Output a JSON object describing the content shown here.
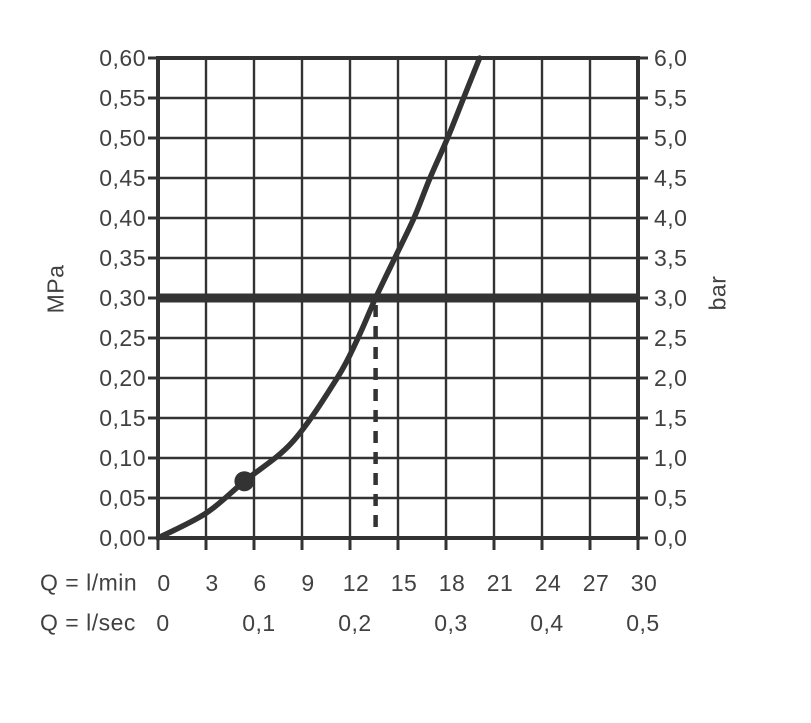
{
  "chart_data": {
    "type": "line",
    "title": "",
    "grid": true,
    "legend": null,
    "x_axis": {
      "primary_label": "Q = l/min",
      "range_lmin": [
        0,
        30
      ],
      "grid_step_lmin": 3,
      "primary_ticks": [
        {
          "q_lmin": 0,
          "label": "0"
        },
        {
          "q_lmin": 3,
          "label": "3"
        },
        {
          "q_lmin": 6,
          "label": "6"
        },
        {
          "q_lmin": 9,
          "label": "9"
        },
        {
          "q_lmin": 12,
          "label": "12"
        },
        {
          "q_lmin": 15,
          "label": "15"
        },
        {
          "q_lmin": 18,
          "label": "18"
        },
        {
          "q_lmin": 21,
          "label": "21"
        },
        {
          "q_lmin": 24,
          "label": "24"
        },
        {
          "q_lmin": 27,
          "label": "27"
        },
        {
          "q_lmin": 30,
          "label": "30"
        }
      ],
      "secondary_label": "Q = l/sec",
      "secondary_ticks": [
        {
          "q_lmin": 0,
          "label": "0"
        },
        {
          "q_lmin": 6,
          "label": "0,1"
        },
        {
          "q_lmin": 12,
          "label": "0,2"
        },
        {
          "q_lmin": 18,
          "label": "0,3"
        },
        {
          "q_lmin": 24,
          "label": "0,4"
        },
        {
          "q_lmin": 30,
          "label": "0,5"
        }
      ]
    },
    "y_axis_left": {
      "unit": "MPa",
      "range_mpa": [
        0,
        0.6
      ],
      "step_mpa": 0.05,
      "ticks": [
        {
          "p_mpa": 0.6,
          "label": "0,60"
        },
        {
          "p_mpa": 0.55,
          "label": "0,55"
        },
        {
          "p_mpa": 0.5,
          "label": "0,50"
        },
        {
          "p_mpa": 0.45,
          "label": "0,45"
        },
        {
          "p_mpa": 0.4,
          "label": "0,40"
        },
        {
          "p_mpa": 0.35,
          "label": "0,35"
        },
        {
          "p_mpa": 0.3,
          "label": "0,30"
        },
        {
          "p_mpa": 0.25,
          "label": "0,25"
        },
        {
          "p_mpa": 0.2,
          "label": "0,20"
        },
        {
          "p_mpa": 0.15,
          "label": "0,15"
        },
        {
          "p_mpa": 0.1,
          "label": "0,10"
        },
        {
          "p_mpa": 0.05,
          "label": "0,05"
        },
        {
          "p_mpa": 0.0,
          "label": "0,00"
        }
      ]
    },
    "y_axis_right": {
      "unit": "bar",
      "range_bar": [
        0,
        6
      ],
      "step_bar": 0.5,
      "ticks": [
        {
          "p_bar": 6.0,
          "label": "6,0"
        },
        {
          "p_bar": 5.5,
          "label": "5,5"
        },
        {
          "p_bar": 5.0,
          "label": "5,0"
        },
        {
          "p_bar": 4.5,
          "label": "4,5"
        },
        {
          "p_bar": 4.0,
          "label": "4,0"
        },
        {
          "p_bar": 3.5,
          "label": "3,5"
        },
        {
          "p_bar": 3.0,
          "label": "3,0"
        },
        {
          "p_bar": 2.5,
          "label": "2,5"
        },
        {
          "p_bar": 2.0,
          "label": "2,0"
        },
        {
          "p_bar": 1.5,
          "label": "1,5"
        },
        {
          "p_bar": 1.0,
          "label": "1,0"
        },
        {
          "p_bar": 0.5,
          "label": "0,5"
        },
        {
          "p_bar": 0.0,
          "label": "0,0"
        }
      ]
    },
    "series": [
      {
        "name": "flow-rate-vs-pressure-curve",
        "points_q_lmin_p_mpa": [
          [
            0,
            0
          ],
          [
            3,
            0.031
          ],
          [
            5.4,
            0.071
          ],
          [
            8.4,
            0.12
          ],
          [
            11.2,
            0.2
          ],
          [
            12.5,
            0.25
          ],
          [
            13.6,
            0.3
          ],
          [
            14.8,
            0.35
          ],
          [
            16.0,
            0.4
          ],
          [
            17.0,
            0.45
          ],
          [
            18.1,
            0.5
          ],
          [
            19.1,
            0.55
          ],
          [
            20.1,
            0.6
          ]
        ]
      }
    ],
    "annotations": {
      "reference_pressure_line": {
        "p_mpa": 0.3,
        "p_bar": 3.0,
        "style": "thick-horizontal"
      },
      "dashed_drop_line": {
        "q_lmin": 13.6,
        "from_p_mpa": 0.3,
        "to_p_mpa": 0
      },
      "marker_dot": {
        "q_lmin": 5.4,
        "p_mpa": 0.071
      }
    },
    "colors": {
      "line": "#333333",
      "text": "#414141",
      "background": "#ffffff"
    }
  }
}
